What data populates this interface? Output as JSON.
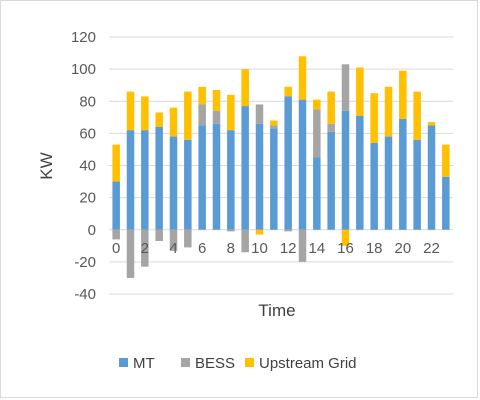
{
  "chart_data": {
    "type": "bar",
    "stacked": true,
    "title": "",
    "xlabel": "Time",
    "ylabel": "KW",
    "ylim": [
      -40,
      120
    ],
    "ytick_step": 20,
    "x": [
      0,
      1,
      2,
      3,
      4,
      5,
      6,
      7,
      8,
      9,
      10,
      11,
      12,
      13,
      14,
      15,
      16,
      17,
      18,
      19,
      20,
      21,
      22,
      23
    ],
    "x_tick_labels": [
      "0",
      "2",
      "4",
      "6",
      "8",
      "10",
      "12",
      "14",
      "16",
      "18",
      "20",
      "22"
    ],
    "grid": "horizontal",
    "legend": "bottom",
    "series": [
      {
        "name": "MT",
        "color": "#5B9BD5",
        "values": [
          30,
          62,
          62,
          64,
          58,
          56,
          65,
          66,
          62,
          77,
          66,
          63,
          83,
          81,
          45,
          61,
          74,
          71,
          54,
          58,
          69,
          56,
          65,
          33
        ]
      },
      {
        "name": "BESS",
        "color": "#A5A5A5",
        "values": [
          -6,
          -30,
          -23,
          -7,
          -12,
          -11,
          13,
          8,
          -1,
          -14,
          12,
          2,
          -1,
          -20,
          30,
          5,
          29,
          0,
          0,
          0,
          0,
          0,
          0,
          0
        ]
      },
      {
        "name": "Upstream Grid",
        "color": "#FFC000",
        "values": [
          23,
          24,
          21,
          9,
          18,
          30,
          11,
          13,
          22,
          23,
          -3,
          3,
          6,
          27,
          6,
          20,
          -10,
          30,
          31,
          31,
          30,
          30,
          2,
          20
        ]
      }
    ]
  }
}
